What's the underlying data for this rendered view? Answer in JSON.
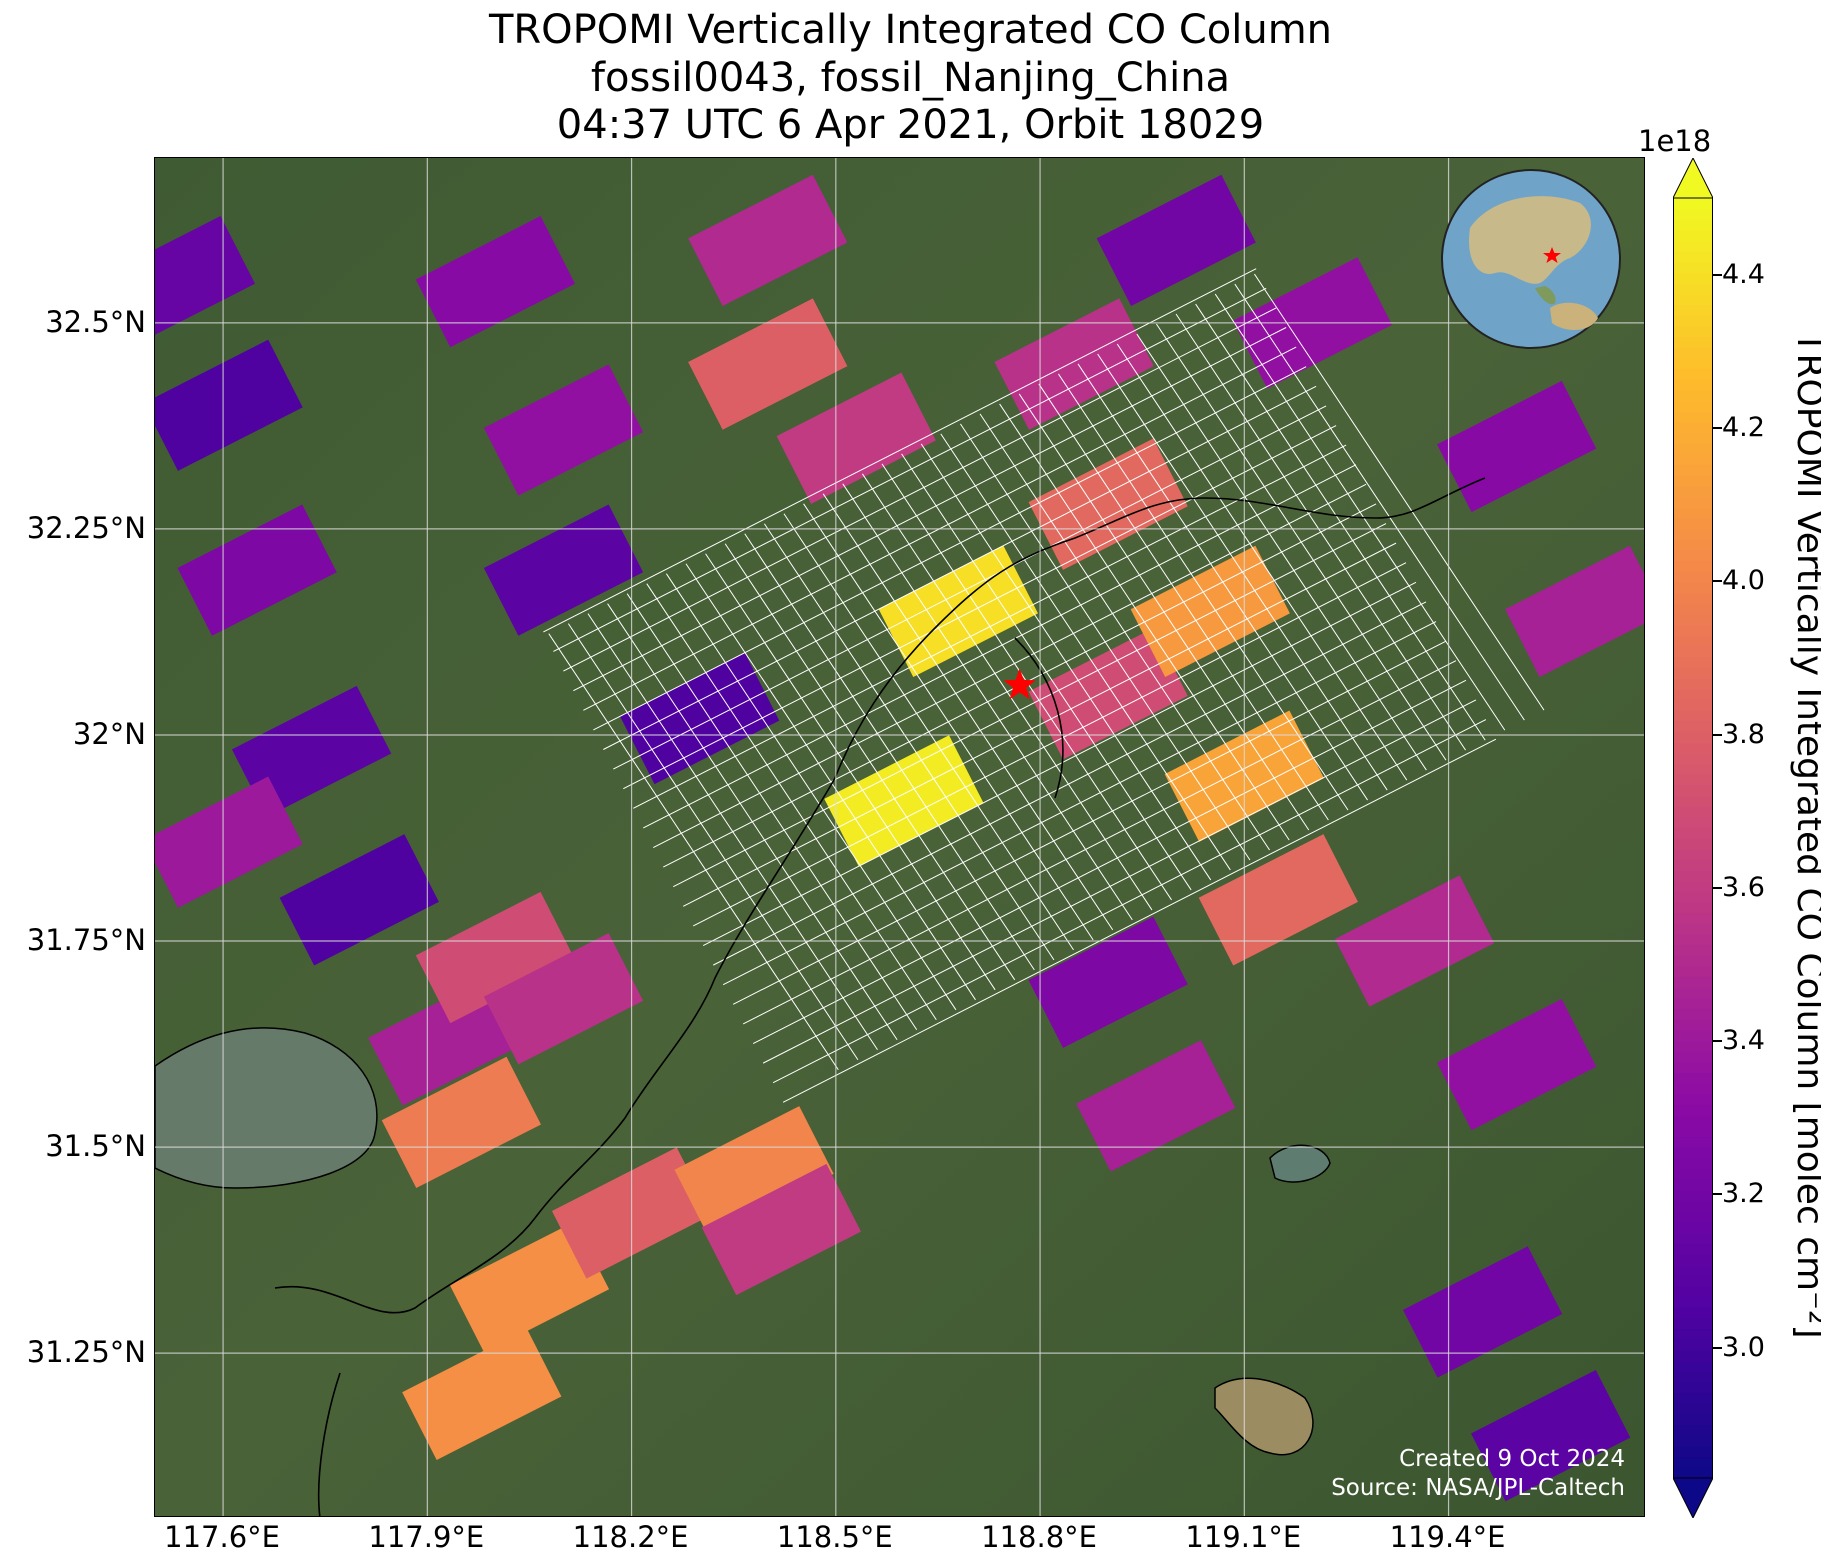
{
  "title": {
    "line1": "TROPOMI Vertically Integrated CO Column",
    "line2": "fossil0043, fossil_Nanjing_China",
    "line3": "04:37 UTC 6 Apr 2021, Orbit 18029"
  },
  "axes": {
    "lat_ticks": [
      "32.5°N",
      "32.25°N",
      "32°N",
      "31.75°N",
      "31.5°N",
      "31.25°N"
    ],
    "lat_values": [
      32.5,
      32.25,
      32.0,
      31.75,
      31.5,
      31.25
    ],
    "lon_ticks": [
      "117.6°E",
      "117.9°E",
      "118.2°E",
      "118.5°E",
      "118.8°E",
      "119.1°E",
      "119.4°E"
    ],
    "lon_values": [
      117.6,
      117.9,
      118.2,
      118.5,
      118.8,
      119.1,
      119.4
    ],
    "lon_range": [
      117.5,
      119.69
    ],
    "lat_range": [
      31.05,
      32.7
    ],
    "grid": true
  },
  "colorbar": {
    "label": "TROPOMI Vertically Integrated CO Column [molec cm⁻²]",
    "exponent": "1e18",
    "ticks": [
      "3.0",
      "3.2",
      "3.4",
      "3.6",
      "3.8",
      "4.0",
      "4.2",
      "4.4"
    ],
    "tick_values": [
      3.0,
      3.2,
      3.4,
      3.6,
      3.8,
      4.0,
      4.2,
      4.4
    ],
    "range": [
      2.83,
      4.5
    ],
    "colormap": "plasma",
    "extend": "both"
  },
  "target": {
    "name": "fossil_Nanjing_China",
    "lon": 118.77,
    "lat": 32.06,
    "marker": "red-star",
    "color": "#ff0000"
  },
  "credits": {
    "created": "Created 9 Oct 2024",
    "source": "Source: NASA/JPL-Caltech"
  },
  "inset": {
    "type": "globe",
    "marker": "red-star"
  },
  "chart_data": {
    "type": "heatmap",
    "value_units": "molec cm⁻² (×1e18)",
    "pixels": [
      {
        "lon": 117.53,
        "lat": 32.55,
        "v": 3.15
      },
      {
        "lon": 117.6,
        "lat": 32.4,
        "v": 3.05
      },
      {
        "lon": 117.65,
        "lat": 32.2,
        "v": 3.25
      },
      {
        "lon": 117.73,
        "lat": 31.98,
        "v": 3.1
      },
      {
        "lon": 117.8,
        "lat": 31.8,
        "v": 3.05
      },
      {
        "lon": 117.93,
        "lat": 31.63,
        "v": 3.45
      },
      {
        "lon": 117.6,
        "lat": 31.87,
        "v": 3.4
      },
      {
        "lon": 118.0,
        "lat": 32.55,
        "v": 3.3
      },
      {
        "lon": 118.1,
        "lat": 32.37,
        "v": 3.35
      },
      {
        "lon": 118.1,
        "lat": 32.2,
        "v": 3.1
      },
      {
        "lon": 118.3,
        "lat": 32.02,
        "v": 3.05
      },
      {
        "lon": 118.4,
        "lat": 32.6,
        "v": 3.5
      },
      {
        "lon": 118.4,
        "lat": 32.45,
        "v": 3.8
      },
      {
        "lon": 118.53,
        "lat": 32.36,
        "v": 3.6
      },
      {
        "lon": 118.68,
        "lat": 32.15,
        "v": 4.4
      },
      {
        "lon": 118.6,
        "lat": 31.92,
        "v": 4.45
      },
      {
        "lon": 118.85,
        "lat": 32.45,
        "v": 3.55
      },
      {
        "lon": 118.9,
        "lat": 32.28,
        "v": 3.85
      },
      {
        "lon": 118.9,
        "lat": 32.05,
        "v": 3.7
      },
      {
        "lon": 119.05,
        "lat": 32.15,
        "v": 4.1
      },
      {
        "lon": 119.1,
        "lat": 31.95,
        "v": 4.15
      },
      {
        "lon": 119.15,
        "lat": 31.8,
        "v": 3.85
      },
      {
        "lon": 118.9,
        "lat": 31.7,
        "v": 3.25
      },
      {
        "lon": 118.97,
        "lat": 31.55,
        "v": 3.45
      },
      {
        "lon": 119.35,
        "lat": 31.75,
        "v": 3.5
      },
      {
        "lon": 119.5,
        "lat": 31.6,
        "v": 3.35
      },
      {
        "lon": 119.45,
        "lat": 31.3,
        "v": 3.2
      },
      {
        "lon": 119.55,
        "lat": 31.15,
        "v": 3.1
      },
      {
        "lon": 118.0,
        "lat": 31.73,
        "v": 3.7
      },
      {
        "lon": 118.1,
        "lat": 31.68,
        "v": 3.55
      },
      {
        "lon": 117.95,
        "lat": 31.53,
        "v": 3.95
      },
      {
        "lon": 118.05,
        "lat": 31.33,
        "v": 4.05
      },
      {
        "lon": 118.2,
        "lat": 31.42,
        "v": 3.8
      },
      {
        "lon": 118.38,
        "lat": 31.47,
        "v": 4.0
      },
      {
        "lon": 118.42,
        "lat": 31.4,
        "v": 3.6
      },
      {
        "lon": 117.98,
        "lat": 31.2,
        "v": 4.05
      },
      {
        "lon": 119.0,
        "lat": 32.6,
        "v": 3.2
      },
      {
        "lon": 119.2,
        "lat": 32.5,
        "v": 3.35
      },
      {
        "lon": 119.5,
        "lat": 32.35,
        "v": 3.3
      },
      {
        "lon": 119.6,
        "lat": 32.15,
        "v": 3.45
      }
    ]
  }
}
